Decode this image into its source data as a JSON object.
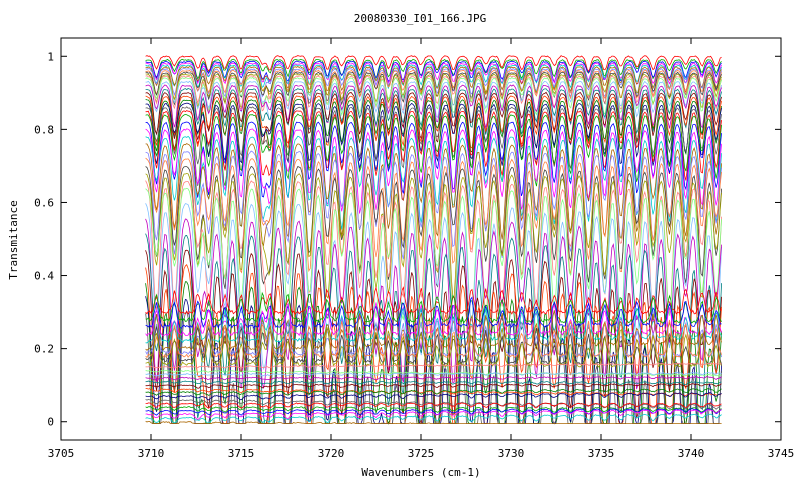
{
  "chart_data": {
    "type": "line",
    "title": "20080330_I01_166.JPG",
    "xlabel": "Wavenumbers (cm-1)",
    "ylabel": "Transmitance",
    "xlim": [
      3705,
      3745
    ],
    "ylim": [
      -0.05,
      1.05
    ],
    "x_ticks": [
      3705,
      3710,
      3715,
      3720,
      3725,
      3730,
      3735,
      3740,
      3745
    ],
    "x_tick_labels": [
      "3705",
      "3710",
      "3715",
      "3720",
      "3725",
      "3730",
      "3735",
      "3740",
      "3745"
    ],
    "y_ticks": [
      0,
      0.2,
      0.4,
      0.6,
      0.8,
      1
    ],
    "y_tick_labels": [
      "0",
      "0.2",
      "0.4",
      "0.6",
      "0.8",
      "1"
    ],
    "grid": false,
    "legend": "none",
    "x_range_of_data": [
      3709.7,
      3741.7
    ],
    "absorption_lines_cm1": [
      3710.3,
      3711.3,
      3712.6,
      3713.2,
      3714.1,
      3715.0,
      3716.2,
      3716.6,
      3717.6,
      3718.8,
      3719.8,
      3720.6,
      3721.6,
      3722.5,
      3723.2,
      3724.0,
      3725.0,
      3725.9,
      3726.8,
      3727.8,
      3728.6,
      3729.5,
      3730.6,
      3731.4,
      3732.4,
      3733.3,
      3734.3,
      3735.2,
      3736.1,
      3737.0,
      3737.9,
      3738.8,
      3739.7,
      3740.6,
      3741.4
    ],
    "series_baselines": [
      1.0,
      0.99,
      0.985,
      0.98,
      0.975,
      0.97,
      0.965,
      0.96,
      0.955,
      0.95,
      0.945,
      0.94,
      0.93,
      0.92,
      0.91,
      0.9,
      0.89,
      0.88,
      0.87,
      0.86,
      0.85,
      0.84,
      0.82,
      0.8,
      0.78,
      0.76,
      0.74,
      0.72,
      0.7,
      0.68,
      0.66,
      0.64,
      0.6,
      0.56,
      0.52,
      0.48,
      0.44,
      0.4,
      0.36,
      0.33,
      0.3,
      0.28,
      0.26,
      0.24,
      0.22,
      0.2,
      0.19,
      0.18,
      0.17,
      0.16,
      0.15,
      0.14,
      0.13,
      0.12,
      0.11,
      0.1,
      0.09,
      0.08,
      0.07,
      0.06,
      0.05,
      0.04,
      0.03,
      0.02,
      0.01,
      0.0
    ],
    "series_colors": [
      "#ff0000",
      "#00aa00",
      "#0000ff",
      "#ff00ff",
      "#00cccc",
      "#aa6600",
      "#8080ff",
      "#ff8040",
      "#404040",
      "#a0a000",
      "#ff8080",
      "#80ff80",
      "#80c0ff",
      "#c000c0",
      "#008080",
      "#800000",
      "#ff4000",
      "#008000",
      "#000080",
      "#606060"
    ]
  }
}
